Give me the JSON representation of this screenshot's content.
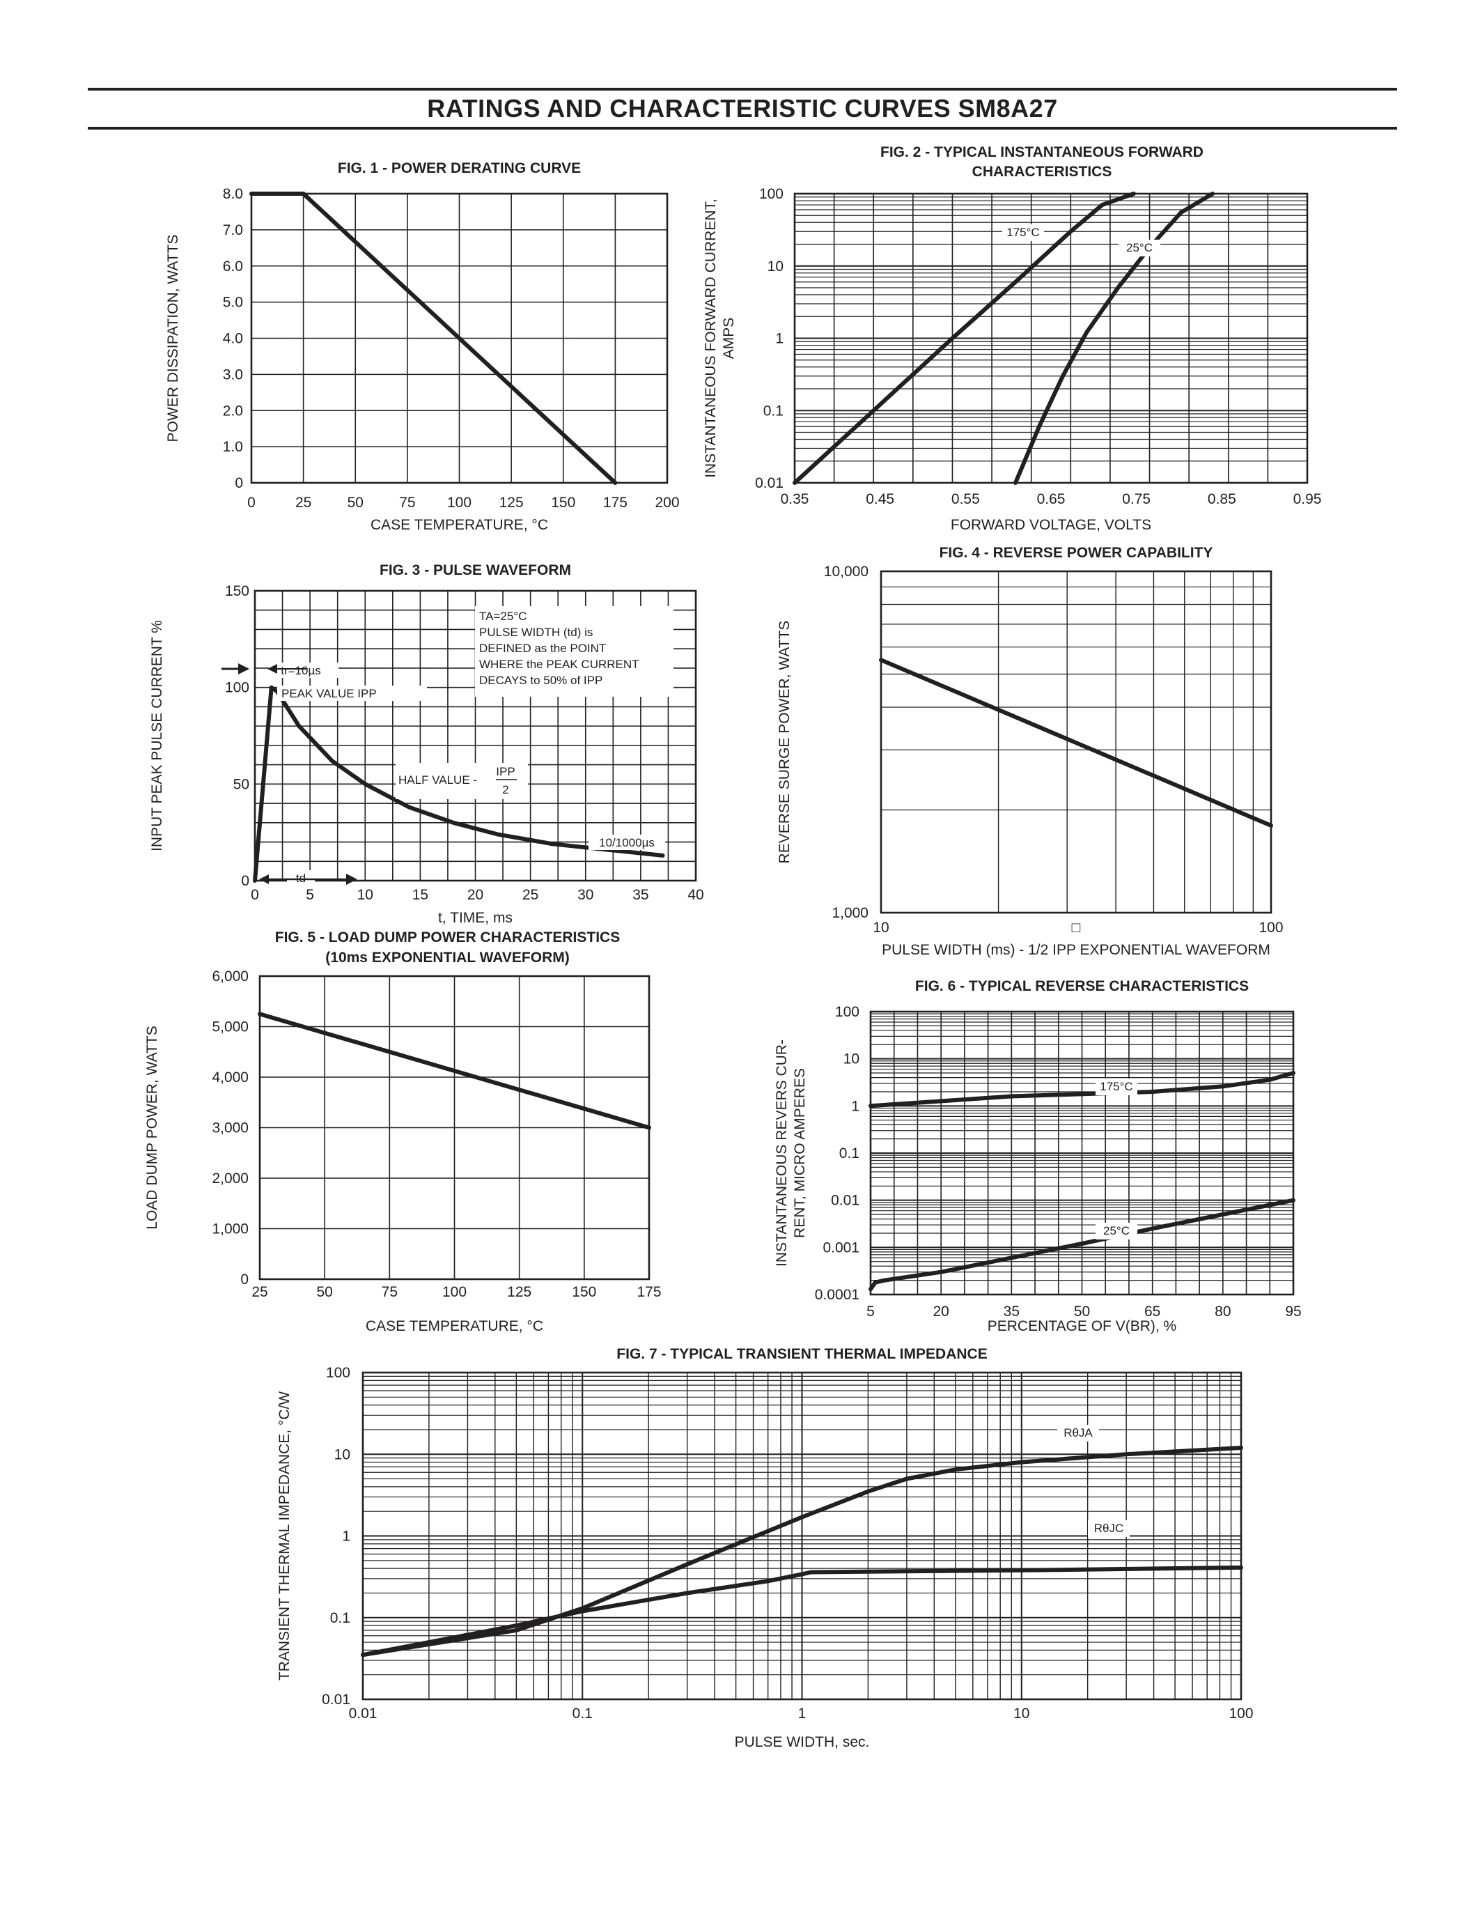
{
  "page_title": "RATINGS AND CHARACTERISTIC CURVES SM8A27",
  "chart_data": [
    {
      "id": "fig1",
      "type": "line",
      "title": "FIG. 1 - POWER DERATING CURVE",
      "xlabel": "CASE TEMPERATURE, °C",
      "ylabel": "POWER DISSIPATION, WATTS",
      "xlim": [
        0,
        200
      ],
      "ylim": [
        0,
        8
      ],
      "x_ticks": [
        "0",
        "25",
        "50",
        "75",
        "100",
        "125",
        "150",
        "175",
        "200"
      ],
      "y_ticks": [
        "0",
        "1.0",
        "2.0",
        "3.0",
        "4.0",
        "5.0",
        "6.0",
        "7.0",
        "8.0"
      ],
      "series": [
        {
          "x": [
            0,
            25,
            175
          ],
          "y": [
            8,
            8,
            0
          ]
        }
      ]
    },
    {
      "id": "fig2",
      "type": "line",
      "title": "FIG. 2 - TYPICAL INSTANTANEOUS FORWARD CHARACTERISTICS",
      "xlabel": "FORWARD VOLTAGE, VOLTS",
      "ylabel": "INSTANTANEOUS FORWARD CURRENT, AMPS",
      "y_scale": "log",
      "xlim": [
        0.35,
        1.0
      ],
      "ylim": [
        0.01,
        100
      ],
      "x_ticks": [
        "0.35",
        "0.45",
        "0.55",
        "0.65",
        "0.75",
        "0.85",
        "0.95"
      ],
      "y_ticks": [
        "0.01",
        "0.1",
        "1",
        "10",
        "100"
      ],
      "series": [
        {
          "name": "175°C",
          "x": [
            0.35,
            0.45,
            0.55,
            0.63,
            0.7,
            0.74,
            0.78
          ],
          "y": [
            0.01,
            0.1,
            1,
            6,
            30,
            70,
            100
          ]
        },
        {
          "name": "25°C",
          "x": [
            0.63,
            0.66,
            0.69,
            0.72,
            0.76,
            0.8,
            0.84,
            0.88
          ],
          "y": [
            0.01,
            0.06,
            0.3,
            1.2,
            5,
            18,
            55,
            100
          ]
        }
      ]
    },
    {
      "id": "fig3",
      "type": "line",
      "title": "FIG. 3 - PULSE WAVEFORM",
      "xlabel": "t, TIME, ms",
      "ylabel": "INPUT PEAK PULSE CURRENT %",
      "xlim": [
        0,
        40
      ],
      "ylim": [
        0,
        150
      ],
      "x_ticks": [
        "0",
        "5",
        "10",
        "15",
        "20",
        "25",
        "30",
        "35",
        "40"
      ],
      "y_ticks": [
        "0",
        "50",
        "100",
        "150"
      ],
      "series": [
        {
          "x": [
            0,
            1.5,
            2,
            4,
            7,
            10,
            14,
            18,
            22,
            27,
            32,
            37
          ],
          "y": [
            0,
            100,
            98,
            80,
            62,
            50,
            38,
            30,
            24,
            19,
            16,
            13
          ]
        }
      ],
      "annotations": {
        "conditions": [
          "TA=25°C",
          "PULSE WIDTH (td) is",
          "DEFINED as the POINT",
          "WHERE the PEAK CURRENT",
          "DECAYS to 50% of IPP"
        ],
        "tr": "tr=10µs",
        "peak": "PEAK VALUE IPP",
        "half": "HALF VALUE -",
        "half_num": "IPP",
        "half_den": "2",
        "waveform": "10/1000µs",
        "td": "td"
      }
    },
    {
      "id": "fig4",
      "type": "line",
      "title": "FIG. 4 - REVERSE POWER CAPABILITY",
      "xlabel": "PULSE WIDTH (ms) - 1/2 IPP EXPONENTIAL WAVEFORM",
      "ylabel": "REVERSE SURGE POWER, WATTS",
      "x_scale": "log",
      "y_scale": "log",
      "xlim": [
        10,
        100
      ],
      "ylim": [
        1000,
        10000
      ],
      "x_ticks": [
        "10",
        "□",
        "100"
      ],
      "y_ticks": [
        "1,000",
        "10,000"
      ],
      "series": [
        {
          "x": [
            10,
            100
          ],
          "y": [
            5500,
            1800
          ]
        }
      ]
    },
    {
      "id": "fig5",
      "type": "line",
      "title": "FIG. 5 - LOAD DUMP POWER CHARACTERISTICS",
      "subtitle": "(10ms EXPONENTIAL WAVEFORM)",
      "xlabel": "CASE TEMPERATURE, °C",
      "ylabel": "LOAD DUMP POWER, WATTS",
      "xlim": [
        25,
        175
      ],
      "ylim": [
        0,
        6000
      ],
      "x_ticks": [
        "25",
        "50",
        "75",
        "100",
        "125",
        "150",
        "175"
      ],
      "y_ticks": [
        "0",
        "1,000",
        "2,000",
        "3,000",
        "4,000",
        "5,000",
        "6,000"
      ],
      "series": [
        {
          "x": [
            25,
            175
          ],
          "y": [
            5250,
            3000
          ]
        }
      ]
    },
    {
      "id": "fig6",
      "type": "line",
      "title": "FIG. 6 - TYPICAL REVERSE CHARACTERISTICS",
      "xlabel": "PERCENTAGE OF V(BR), %",
      "ylabel": "INSTANTANEOUS REVERS CUR- RENT, MICRO AMPERES",
      "y_scale": "log",
      "xlim": [
        5,
        95
      ],
      "ylim": [
        0.0001,
        100
      ],
      "x_ticks": [
        "5",
        "20",
        "35",
        "50",
        "65",
        "80",
        "95"
      ],
      "y_ticks": [
        "0.0001",
        "0.001",
        "0.01",
        "0.1",
        "1",
        "10",
        "100"
      ],
      "series": [
        {
          "name": "175°C",
          "x": [
            5,
            35,
            65,
            80,
            90,
            95
          ],
          "y": [
            1,
            1.6,
            2.0,
            2.6,
            3.6,
            5
          ]
        },
        {
          "name": "25°C",
          "x": [
            5,
            6,
            8,
            20,
            35,
            50,
            65,
            80,
            95
          ],
          "y": [
            0.00013,
            0.00018,
            0.0002,
            0.0003,
            0.0006,
            0.0012,
            0.0025,
            0.005,
            0.01
          ]
        }
      ]
    },
    {
      "id": "fig7",
      "type": "line",
      "title": "FIG. 7 - TYPICAL TRANSIENT THERMAL IMPEDANCE",
      "xlabel": "PULSE WIDTH, sec.",
      "ylabel": "TRANSIENT THERMAL IMPEDANCE, °C/W",
      "x_scale": "log",
      "y_scale": "log",
      "xlim": [
        0.01,
        100
      ],
      "ylim": [
        0.01,
        100
      ],
      "x_ticks": [
        "0.01",
        "0.1",
        "1",
        "10",
        "100"
      ],
      "y_ticks": [
        "0.01",
        "0.1",
        "1",
        "10",
        "100"
      ],
      "series": [
        {
          "name": "RθJA",
          "x": [
            0.01,
            0.05,
            0.1,
            0.3,
            1,
            2,
            3,
            5,
            10,
            30,
            100
          ],
          "y": [
            0.035,
            0.07,
            0.13,
            0.45,
            1.7,
            3.5,
            5,
            6.5,
            8,
            10,
            12
          ]
        },
        {
          "name": "RθJC",
          "x": [
            0.01,
            0.05,
            0.1,
            0.3,
            0.7,
            1,
            1.1,
            10,
            100
          ],
          "y": [
            0.035,
            0.08,
            0.12,
            0.2,
            0.28,
            0.34,
            0.36,
            0.38,
            0.41
          ]
        }
      ]
    }
  ]
}
